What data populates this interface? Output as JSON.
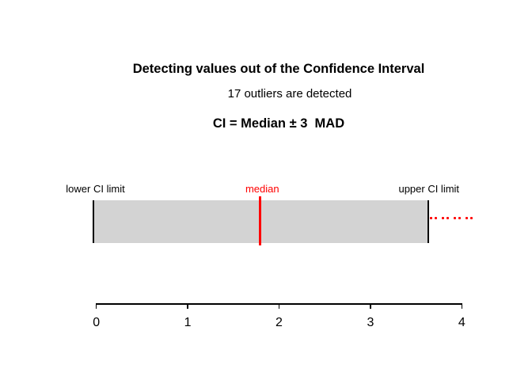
{
  "chart_data": {
    "type": "interval",
    "title_line1": "Detecting values out of the Confidence Interval",
    "title_line2": "CI = Median ± 3  MAD",
    "subtitle": "17 outliers are detected",
    "labels": {
      "lower": "lower CI limit",
      "median": "median",
      "upper": "upper CI limit"
    },
    "lower_ci": -0.045,
    "median": 1.79,
    "upper_ci": 3.64,
    "outliers_detected": 17,
    "outlier_dots_x": [
      3.66,
      3.72,
      3.79,
      3.85,
      3.92,
      3.98,
      4.05,
      4.11
    ],
    "x_ticks": [
      "0",
      "1",
      "2",
      "3",
      "4"
    ],
    "x_range": [
      0,
      4
    ],
    "grid": false,
    "legend": false,
    "colors": {
      "band_fill": "#d3d3d3",
      "accent_red": "#ff0000",
      "axis": "#000000",
      "background": "#ffffff"
    }
  }
}
